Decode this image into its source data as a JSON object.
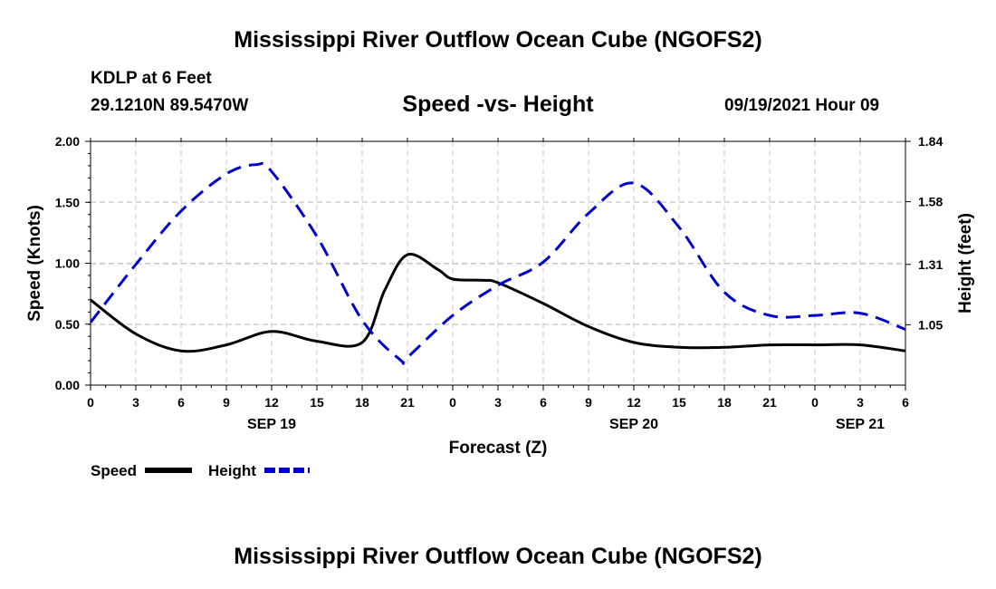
{
  "header": {
    "title": "Mississippi River Outflow Ocean Cube (NGOFS2)",
    "station": "KDLP at 6 Feet",
    "coords": "29.1210N  89.5470W",
    "subtitle": "Speed -vs- Height",
    "datetime": "09/19/2021 Hour 09"
  },
  "footer": {
    "title": "Mississippi River Outflow Ocean Cube (NGOFS2)"
  },
  "chart_data": {
    "type": "line",
    "title": "Speed -vs- Height",
    "xlabel": "Forecast (Z)",
    "ylabel": "Speed (Knots)",
    "y2label": "Height (feet)",
    "x_range_hours": [
      0,
      54
    ],
    "ylim": [
      0,
      2.0
    ],
    "y2lim": [
      0.79,
      1.84
    ],
    "grid": true,
    "x_tick_labels": [
      "0",
      "3",
      "6",
      "9",
      "12",
      "15",
      "18",
      "21",
      "0",
      "3",
      "6",
      "9",
      "12",
      "15",
      "18",
      "21",
      "0",
      "3",
      "6"
    ],
    "date_labels": [
      {
        "label": "SEP 19",
        "hour": 12
      },
      {
        "label": "SEP 20",
        "hour": 36
      },
      {
        "label": "SEP 21",
        "hour": 51
      }
    ],
    "y_ticks": [
      "0.00",
      "0.50",
      "1.00",
      "1.50",
      "2.00"
    ],
    "y_tick_values": [
      0,
      0.5,
      1.0,
      1.5,
      2.0
    ],
    "y2_ticks": [
      "1.05",
      "1.31",
      "1.58",
      "1.84"
    ],
    "y2_tick_values": [
      1.05,
      1.31,
      1.58,
      1.84
    ],
    "legend": [
      {
        "name": "Speed",
        "color": "#000000",
        "dash": "solid"
      },
      {
        "name": "Height",
        "color": "#0000cc",
        "dash": "dashed"
      }
    ],
    "series": [
      {
        "name": "Speed",
        "axis": "left",
        "color": "#000000",
        "x": [
          0,
          3,
          6,
          9,
          12,
          15,
          18,
          19.5,
          21,
          23,
          24,
          26,
          27,
          30,
          33,
          36,
          39,
          42,
          45,
          48,
          51,
          54
        ],
        "values": [
          0.7,
          0.42,
          0.28,
          0.33,
          0.44,
          0.36,
          0.35,
          0.78,
          1.07,
          0.95,
          0.87,
          0.86,
          0.84,
          0.67,
          0.48,
          0.35,
          0.31,
          0.31,
          0.33,
          0.33,
          0.33,
          0.28
        ]
      },
      {
        "name": "Height",
        "axis": "right",
        "color": "#0000cc",
        "x": [
          0,
          3,
          6,
          9,
          11,
          12,
          15,
          18,
          20.5,
          21,
          24,
          27,
          30,
          33,
          36,
          39,
          42,
          45,
          48,
          51,
          54
        ],
        "values": [
          1.06,
          1.31,
          1.54,
          1.7,
          1.74,
          1.71,
          1.43,
          1.07,
          0.9,
          0.91,
          1.09,
          1.22,
          1.32,
          1.53,
          1.66,
          1.47,
          1.19,
          1.09,
          1.09,
          1.1,
          1.03
        ]
      }
    ]
  }
}
